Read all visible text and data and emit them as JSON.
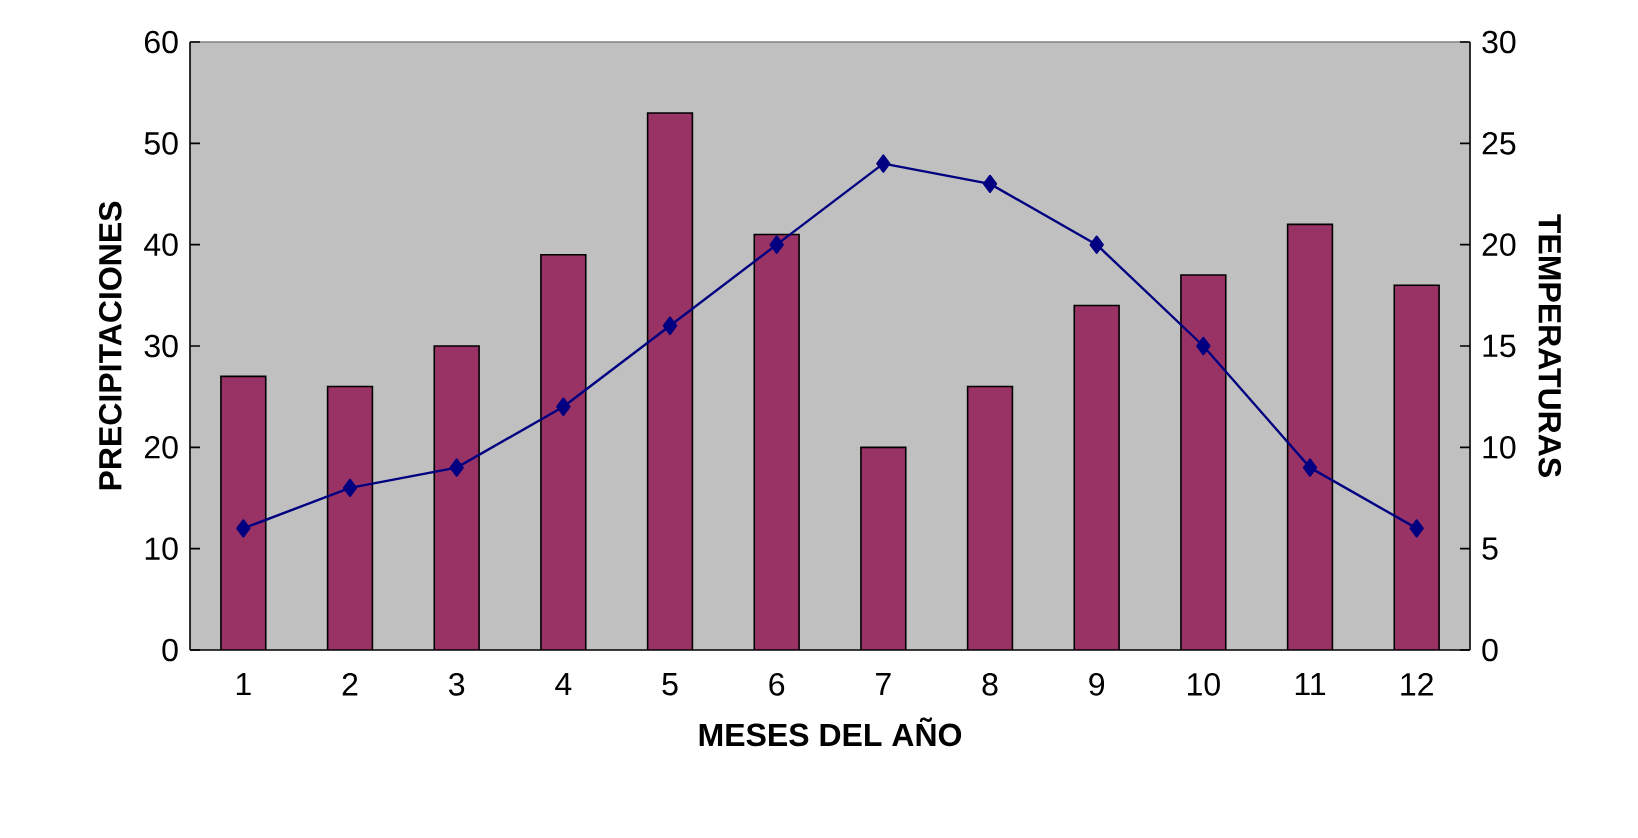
{
  "chart_data": {
    "type": "bar",
    "xlabel": "MESES DEL AÑO",
    "ylabel": "PRECIPITACIONES",
    "y2label": "TEMPERATURAS",
    "categories": [
      "1",
      "2",
      "3",
      "4",
      "5",
      "6",
      "7",
      "8",
      "9",
      "10",
      "11",
      "12"
    ],
    "series": [
      {
        "color": "#993366",
        "values": [
          27,
          26,
          30,
          39,
          53,
          41,
          20,
          26,
          34,
          37,
          42,
          36
        ]
      },
      {
        "type": "line",
        "axis": "y2",
        "color": "#000080",
        "values": [
          6,
          8,
          9,
          12,
          16,
          20,
          24,
          23,
          20,
          15,
          9,
          6
        ]
      }
    ],
    "ylim": [
      0,
      60
    ],
    "yticks": [
      0,
      10,
      20,
      30,
      40,
      50,
      60
    ],
    "y2lim": [
      0,
      30
    ],
    "y2ticks": [
      0,
      5,
      10,
      15,
      20,
      25,
      30
    ],
    "marker": "diamond",
    "line_style": "solid"
  }
}
